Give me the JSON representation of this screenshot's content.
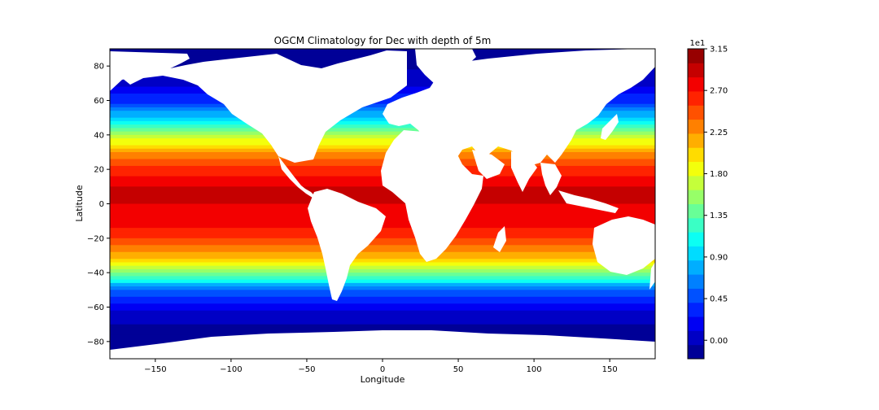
{
  "chart_data": {
    "type": "heatmap",
    "subtype": "filled-contour map",
    "title": "OGCM Climatology for Dec with depth of 5m",
    "xlabel": "Longitude",
    "ylabel": "Latitude",
    "xlim": [
      -180,
      180
    ],
    "ylim": [
      -90,
      90
    ],
    "x_ticks": [
      -150,
      -100,
      -50,
      0,
      50,
      100,
      150
    ],
    "y_ticks": [
      -80,
      -60,
      -40,
      -20,
      0,
      20,
      40,
      60,
      80
    ],
    "x_tick_labels": [
      "−150",
      "−100",
      "−50",
      "0",
      "50",
      "100",
      "150"
    ],
    "y_tick_labels": [
      "−80",
      "−60",
      "−40",
      "−20",
      "0",
      "20",
      "40",
      "60",
      "80"
    ],
    "colormap": "jet",
    "colorbar": {
      "offset_label": "1e1",
      "range": [
        -0.2,
        3.15
      ],
      "ticks": [
        0.0,
        0.45,
        0.9,
        1.35,
        1.8,
        2.25,
        2.7,
        3.15
      ],
      "tick_labels": [
        "0.00",
        "0.45",
        "0.90",
        "1.35",
        "1.80",
        "2.25",
        "2.70",
        "3.15"
      ],
      "levels": 22
    },
    "field_summary": [
      {
        "lat": -80,
        "value": -0.15
      },
      {
        "lat": -65,
        "value": 0.0
      },
      {
        "lat": -50,
        "value": 0.6
      },
      {
        "lat": -40,
        "value": 1.45
      },
      {
        "lat": -30,
        "value": 2.2
      },
      {
        "lat": -20,
        "value": 2.55
      },
      {
        "lat": -10,
        "value": 2.8
      },
      {
        "lat": 0,
        "value": 2.85
      },
      {
        "lat": 10,
        "value": 2.85
      },
      {
        "lat": 20,
        "value": 2.6
      },
      {
        "lat": 30,
        "value": 2.2
      },
      {
        "lat": 40,
        "value": 1.6
      },
      {
        "lat": 50,
        "value": 0.9
      },
      {
        "lat": 60,
        "value": 0.35
      },
      {
        "lat": 70,
        "value": 0.05
      },
      {
        "lat": 85,
        "value": -0.15
      }
    ],
    "land_color": "#ffffff"
  }
}
